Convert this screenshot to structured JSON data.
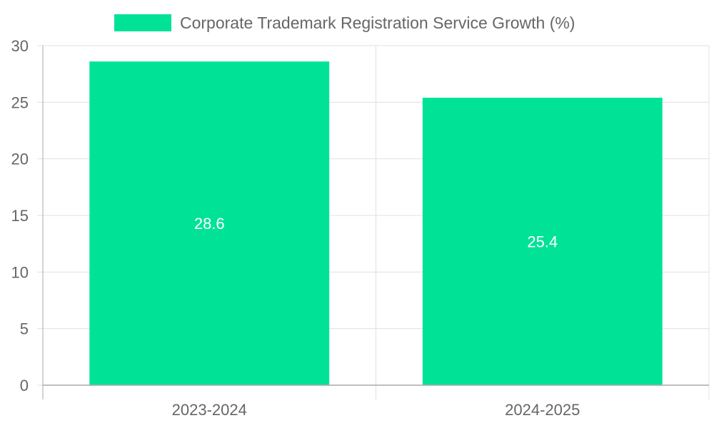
{
  "chart_data": {
    "type": "bar",
    "title": "",
    "xlabel": "",
    "ylabel": "",
    "categories": [
      "2023-2024",
      "2024-2025"
    ],
    "series": [
      {
        "name": "Corporate Trademark Registration Service Growth (%)",
        "values": [
          28.6,
          25.4
        ],
        "color": "#00e396"
      }
    ],
    "data_labels": [
      "28.6",
      "25.4"
    ],
    "y_ticks": [
      "0",
      "5",
      "10",
      "15",
      "20",
      "25",
      "30"
    ],
    "ylim": [
      0,
      30
    ],
    "legend_position": "top-center",
    "grid": true
  },
  "colors": {
    "grid": "#e0e0e0",
    "axis": "#aaaaaa",
    "text": "#666666",
    "data_label": "#ffffff"
  }
}
